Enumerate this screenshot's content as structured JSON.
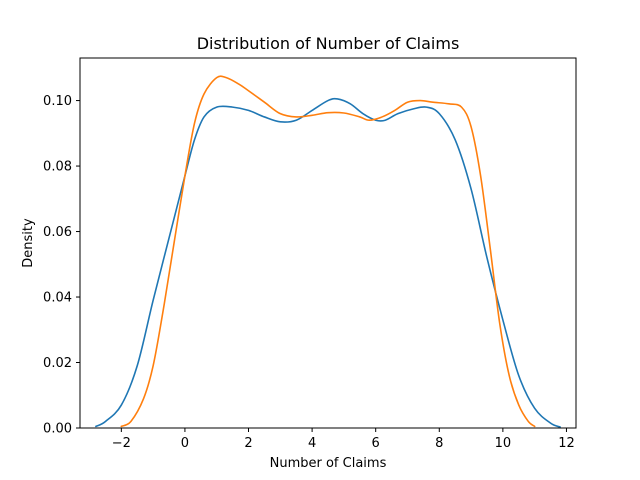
{
  "chart_data": {
    "type": "line",
    "title": "Distribution of Number of Claims",
    "xlabel": "Number of Claims",
    "ylabel": "Density",
    "xlim": [
      -3.3,
      12.3
    ],
    "ylim": [
      0,
      0.113
    ],
    "xticks": [
      -2,
      0,
      2,
      4,
      6,
      8,
      10,
      12
    ],
    "xtick_labels": [
      "−2",
      "0",
      "2",
      "4",
      "6",
      "8",
      "10",
      "12"
    ],
    "yticks": [
      0,
      0.02,
      0.04,
      0.06,
      0.08,
      0.1
    ],
    "ytick_labels": [
      "0.00",
      "0.02",
      "0.04",
      "0.06",
      "0.08",
      "0.10"
    ],
    "grid": false,
    "legend": "none",
    "series": [
      {
        "color": "#1f77b4",
        "points": [
          [
            -2.8,
            0.0005
          ],
          [
            -2.5,
            0.002
          ],
          [
            -2.0,
            0.007
          ],
          [
            -1.5,
            0.019
          ],
          [
            -1.0,
            0.039
          ],
          [
            -0.5,
            0.058
          ],
          [
            0.0,
            0.077
          ],
          [
            0.3,
            0.088
          ],
          [
            0.6,
            0.095
          ],
          [
            1.0,
            0.098
          ],
          [
            1.5,
            0.098
          ],
          [
            2.0,
            0.097
          ],
          [
            2.5,
            0.095
          ],
          [
            3.0,
            0.0935
          ],
          [
            3.5,
            0.094
          ],
          [
            4.0,
            0.097
          ],
          [
            4.5,
            0.1
          ],
          [
            4.8,
            0.1005
          ],
          [
            5.2,
            0.099
          ],
          [
            5.6,
            0.096
          ],
          [
            6.0,
            0.094
          ],
          [
            6.3,
            0.094
          ],
          [
            6.7,
            0.096
          ],
          [
            7.2,
            0.0975
          ],
          [
            7.6,
            0.098
          ],
          [
            8.0,
            0.096
          ],
          [
            8.5,
            0.088
          ],
          [
            9.0,
            0.073
          ],
          [
            9.5,
            0.052
          ],
          [
            10.0,
            0.033
          ],
          [
            10.5,
            0.016
          ],
          [
            11.0,
            0.006
          ],
          [
            11.5,
            0.0015
          ],
          [
            11.8,
            0.0003
          ]
        ]
      },
      {
        "color": "#ff7f0e",
        "points": [
          [
            -2.0,
            0.0005
          ],
          [
            -1.7,
            0.002
          ],
          [
            -1.3,
            0.009
          ],
          [
            -1.0,
            0.019
          ],
          [
            -0.7,
            0.035
          ],
          [
            -0.4,
            0.053
          ],
          [
            0.0,
            0.077
          ],
          [
            0.3,
            0.093
          ],
          [
            0.6,
            0.102
          ],
          [
            1.0,
            0.107
          ],
          [
            1.3,
            0.107
          ],
          [
            1.7,
            0.105
          ],
          [
            2.0,
            0.103
          ],
          [
            2.5,
            0.0995
          ],
          [
            3.0,
            0.096
          ],
          [
            3.5,
            0.095
          ],
          [
            4.0,
            0.0955
          ],
          [
            4.5,
            0.0963
          ],
          [
            5.0,
            0.0962
          ],
          [
            5.5,
            0.095
          ],
          [
            5.8,
            0.094
          ],
          [
            6.2,
            0.095
          ],
          [
            6.6,
            0.097
          ],
          [
            7.0,
            0.0995
          ],
          [
            7.4,
            0.1
          ],
          [
            7.8,
            0.0995
          ],
          [
            8.3,
            0.099
          ],
          [
            8.7,
            0.098
          ],
          [
            9.0,
            0.092
          ],
          [
            9.3,
            0.077
          ],
          [
            9.6,
            0.055
          ],
          [
            9.9,
            0.032
          ],
          [
            10.2,
            0.016
          ],
          [
            10.5,
            0.007
          ],
          [
            10.8,
            0.002
          ],
          [
            11.0,
            0.0005
          ]
        ]
      }
    ]
  }
}
